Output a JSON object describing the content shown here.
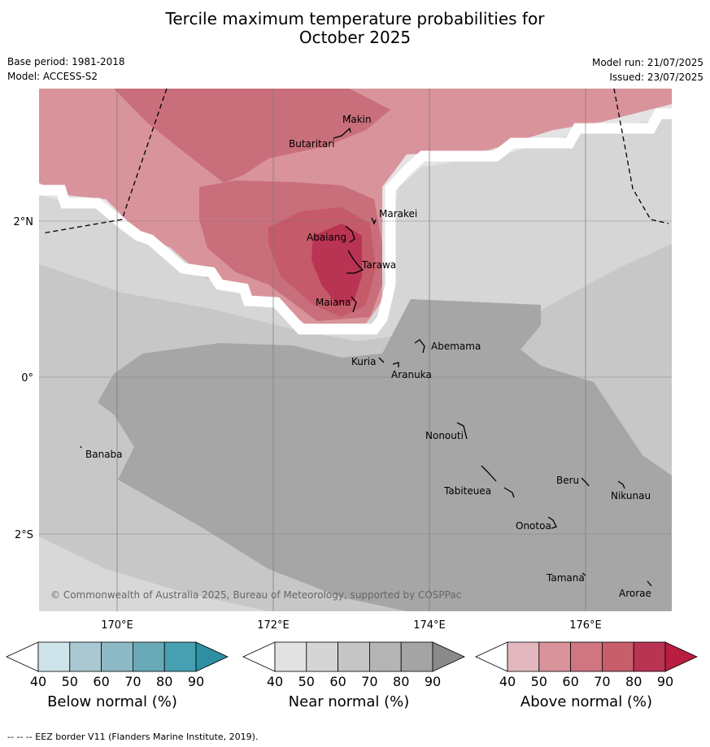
{
  "title_line1": "Tercile maximum temperature probabilities for",
  "title_line2": "October 2025",
  "base_period": "Base period: 1981-2018",
  "model": "Model: ACCESS-S2",
  "model_run": "Model run: 21/07/2025",
  "issued": "Issued: 23/07/2025",
  "copyright": "© Commonwealth of Australia 2025, Bureau of Meteorology, supported by COSPPac",
  "footer": "--  --  -- EEZ border V11 (Flanders Marine Institute, 2019).",
  "axes": {
    "x_ticks": [
      "170°E",
      "172°E",
      "174°E",
      "176°E"
    ],
    "y_ticks": [
      "2°N",
      "0°",
      "2°S"
    ]
  },
  "places": [
    {
      "name": "Makin"
    },
    {
      "name": "Butaritari"
    },
    {
      "name": "Marakei"
    },
    {
      "name": "Abaiang"
    },
    {
      "name": "Tarawa"
    },
    {
      "name": "Maiana"
    },
    {
      "name": "Abemama"
    },
    {
      "name": "Kuria"
    },
    {
      "name": "Aranuka"
    },
    {
      "name": "Nonouti"
    },
    {
      "name": "Banaba"
    },
    {
      "name": "Beru"
    },
    {
      "name": "Tabiteuea"
    },
    {
      "name": "Nikunau"
    },
    {
      "name": "Onotoa"
    },
    {
      "name": "Tamana"
    },
    {
      "name": "Arorae"
    }
  ],
  "colorbars": [
    {
      "label": "Below normal (%)",
      "ticks": [
        "40",
        "50",
        "60",
        "70",
        "80",
        "90"
      ],
      "colors": [
        "#cfe3ea",
        "#a9c8d1",
        "#8db9c5",
        "#6aa9b8",
        "#46a0b1",
        "#2e8fa3"
      ]
    },
    {
      "label": "Near normal (%)",
      "ticks": [
        "40",
        "50",
        "60",
        "70",
        "80",
        "90"
      ],
      "colors": [
        "#e2e2e2",
        "#d5d5d5",
        "#c5c5c5",
        "#b4b4b4",
        "#a4a4a4",
        "#8a8a8a"
      ]
    },
    {
      "label": "Above normal (%)",
      "ticks": [
        "40",
        "50",
        "60",
        "70",
        "80",
        "90"
      ],
      "colors": [
        "#e2b8be",
        "#d9939b",
        "#cf7680",
        "#c85d6b",
        "#b93352",
        "#b81e40"
      ]
    }
  ]
}
